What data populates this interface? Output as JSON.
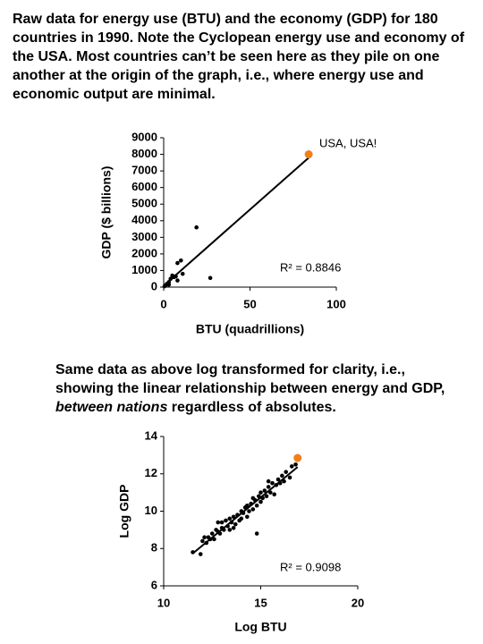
{
  "intro": "Raw data for energy use (BTU) and the economy (GDP) for 180 countries in 1990.  Note the Cyclopean energy use and economy of the USA.  Most countries can’t be seen here as they pile on one another at the origin of the graph, i.e., where energy use and economic output are minimal.",
  "second_caption": [
    "Same data as above log transformed for clarity, i.e., showing the linear relationship between energy and GDP, ",
    "between nations",
    " regardless of absolutes."
  ],
  "chart_data": [
    {
      "type": "scatter",
      "x_label": "BTU (quadrillions)",
      "y_label": "GDP ($ billions)",
      "x": [
        19,
        27,
        10,
        8,
        11,
        8,
        5,
        3,
        2,
        1,
        4,
        6,
        0.5,
        1.5,
        3,
        7
      ],
      "y": [
        3600,
        550,
        1600,
        1450,
        800,
        400,
        700,
        300,
        200,
        100,
        500,
        600,
        50,
        150,
        150,
        650
      ],
      "color": "#000000",
      "highlight": {
        "x": 84,
        "y": 8000,
        "label": "USA, USA!",
        "color": "#f07f1a"
      },
      "trendline": true,
      "annotation": "R² = 0.8846",
      "xlim": [
        0,
        100
      ],
      "xticks": [
        0,
        50,
        100
      ],
      "ylim": [
        0,
        9000
      ],
      "yticks": [
        0,
        1000,
        2000,
        3000,
        4000,
        5000,
        6000,
        7000,
        8000,
        9000
      ]
    },
    {
      "type": "scatter",
      "x_label": "Log BTU",
      "y_label": "Log GDP",
      "x": [
        11.5,
        11.9,
        12.0,
        12.1,
        12.2,
        12.3,
        12.4,
        12.5,
        12.6,
        12.7,
        12.8,
        12.9,
        13.0,
        13.0,
        13.1,
        13.2,
        13.3,
        13.4,
        13.4,
        13.5,
        13.6,
        13.7,
        13.8,
        13.9,
        14.0,
        14.0,
        14.1,
        14.2,
        14.3,
        14.3,
        14.4,
        14.5,
        14.6,
        14.7,
        14.8,
        14.8,
        14.9,
        15.0,
        15.0,
        15.1,
        15.2,
        15.3,
        15.4,
        15.5,
        15.6,
        15.7,
        15.8,
        15.9,
        16.0,
        16.1,
        16.2,
        16.3,
        16.5,
        16.6,
        16.8,
        13.6,
        12.8,
        14.6,
        15.4
      ],
      "y": [
        7.8,
        7.7,
        8.4,
        8.6,
        8.3,
        8.6,
        8.5,
        8.8,
        8.5,
        9.0,
        9.4,
        8.8,
        9.1,
        9.4,
        9.0,
        9.5,
        9.2,
        9.6,
        9.0,
        9.4,
        9.7,
        9.3,
        9.8,
        9.5,
        10.0,
        9.6,
        9.9,
        10.2,
        9.7,
        10.3,
        10.0,
        10.4,
        10.1,
        10.6,
        8.8,
        10.3,
        10.8,
        10.5,
        11.0,
        10.7,
        11.1,
        10.8,
        11.3,
        11.0,
        11.5,
        10.9,
        11.4,
        11.7,
        11.5,
        11.9,
        11.6,
        12.1,
        11.8,
        12.4,
        12.5,
        9.1,
        8.9,
        10.7,
        11.6
      ],
      "color": "#000000",
      "highlight": {
        "x": 16.9,
        "y": 12.85,
        "color": "#f07f1a"
      },
      "trendline": true,
      "annotation": "R² = 0.9098",
      "xlim": [
        10,
        20
      ],
      "xticks": [
        10,
        15,
        20
      ],
      "ylim": [
        6,
        14
      ],
      "yticks": [
        6,
        8,
        10,
        12,
        14
      ]
    }
  ]
}
